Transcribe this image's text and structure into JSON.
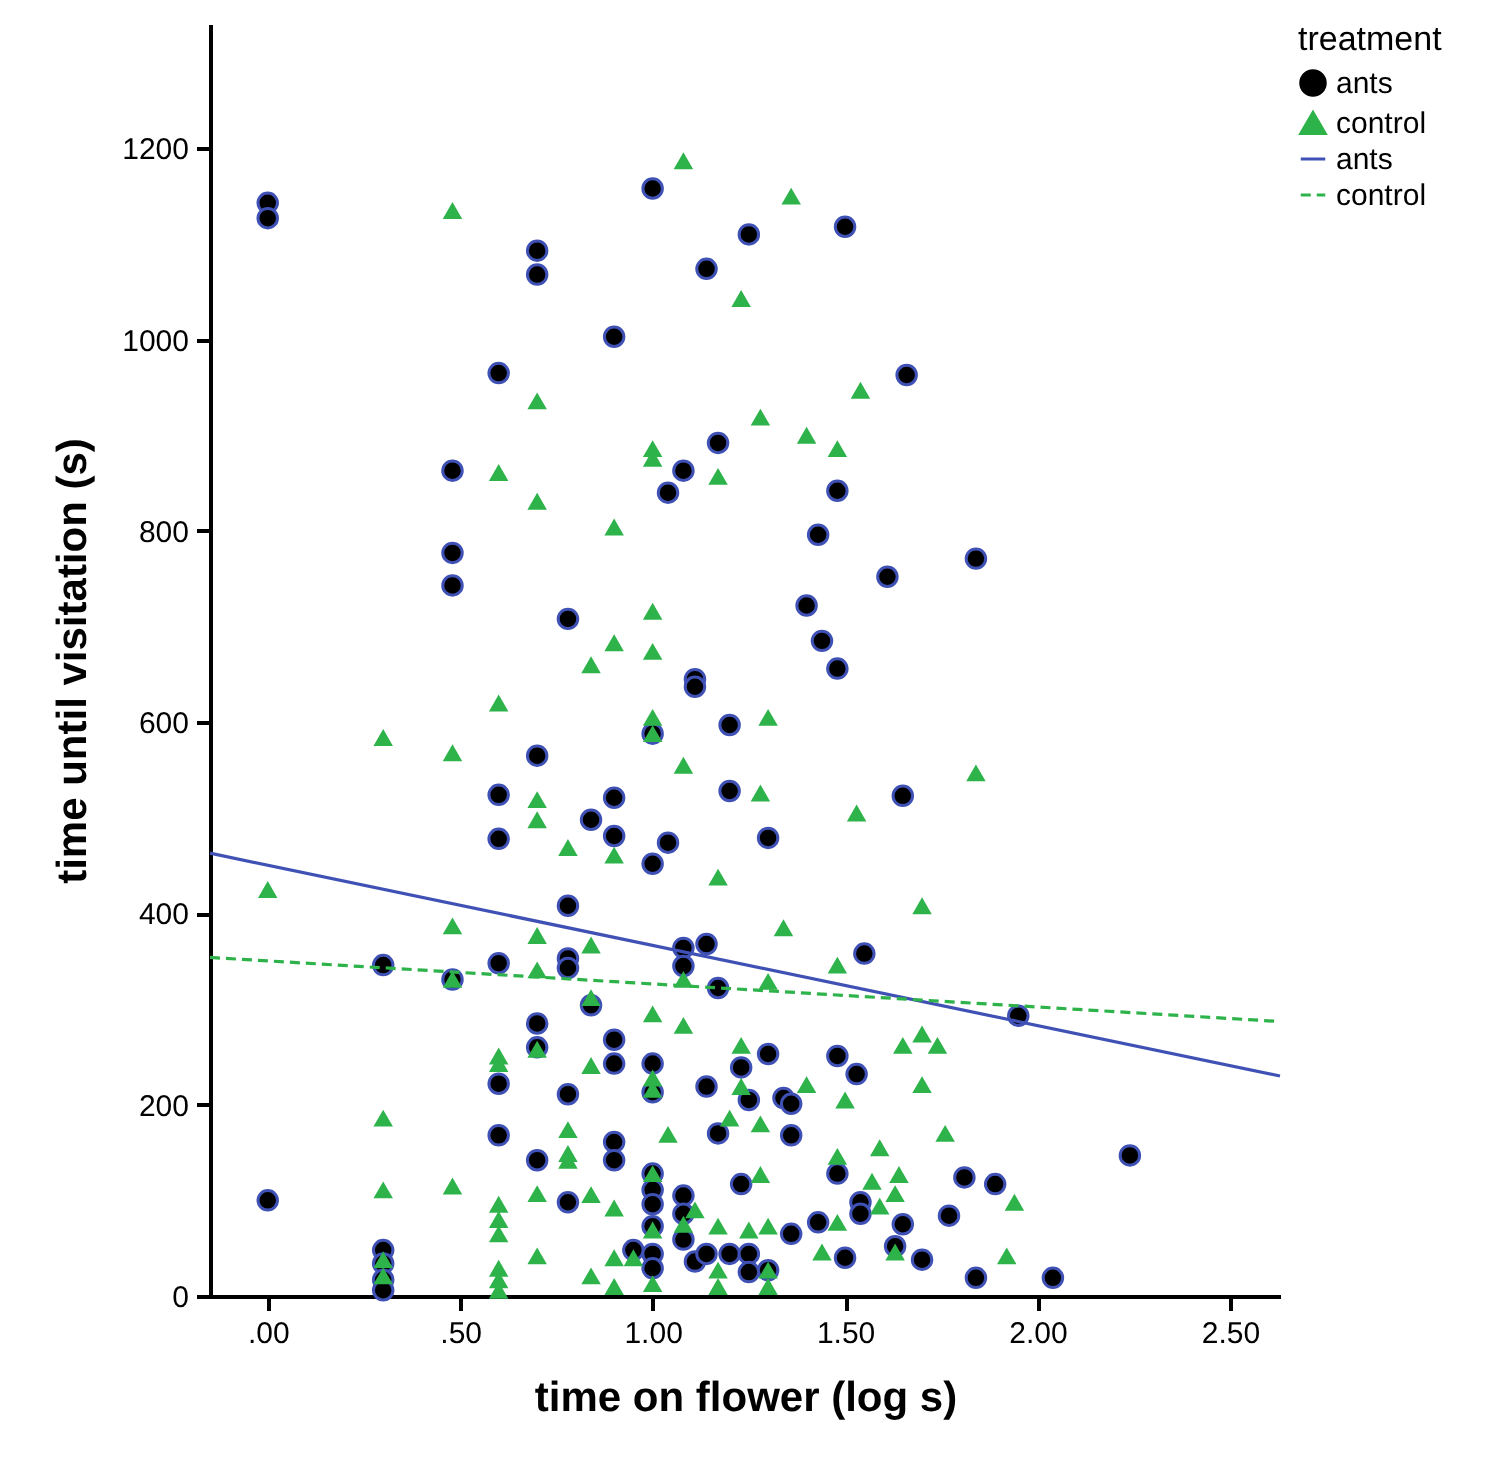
{
  "chart_data": {
    "type": "scatter",
    "xlabel": "time on flower (log s)",
    "ylabel": "time until visitation (s)",
    "legend_title": "treatment",
    "legend": "top right",
    "xlim": [
      -0.15,
      2.63
    ],
    "ylim": [
      0,
      1330
    ],
    "xticks": [
      {
        "value": 0,
        "label": ".00"
      },
      {
        "value": 0.5,
        "label": ".50"
      },
      {
        "value": 1,
        "label": "1.00"
      },
      {
        "value": 1.5,
        "label": "1.50"
      },
      {
        "value": 2,
        "label": "2.00"
      },
      {
        "value": 2.5,
        "label": "2.50"
      }
    ],
    "yticks": [
      0,
      200,
      400,
      600,
      800,
      1000,
      1200
    ],
    "series": [
      {
        "name": "ants",
        "marker": "circle",
        "color": "#000000",
        "x": [
          0,
          0,
          0,
          0.3,
          0.3,
          0.3,
          0.3,
          0.3,
          0.48,
          0.48,
          0.48,
          0.48,
          0.6,
          0.6,
          0.6,
          0.6,
          0.6,
          0.6,
          0.7,
          0.7,
          0.7,
          0.7,
          0.7,
          0.7,
          0.78,
          0.78,
          0.78,
          0.78,
          0.78,
          0.78,
          0.84,
          0.84,
          0.9,
          0.9,
          0.9,
          0.9,
          0.9,
          0.9,
          0.9,
          0.95,
          1,
          1,
          1,
          1,
          1,
          1,
          1,
          1,
          1,
          1,
          1,
          1.04,
          1.04,
          1.08,
          1.08,
          1.08,
          1.08,
          1.08,
          1.08,
          1.11,
          1.11,
          1.11,
          1.14,
          1.14,
          1.14,
          1.14,
          1.17,
          1.17,
          1.17,
          1.2,
          1.2,
          1.2,
          1.23,
          1.23,
          1.25,
          1.25,
          1.25,
          1.25,
          1.3,
          1.3,
          1.3,
          1.34,
          1.36,
          1.36,
          1.36,
          1.4,
          1.43,
          1.43,
          1.44,
          1.48,
          1.48,
          1.48,
          1.48,
          1.5,
          1.5,
          1.53,
          1.54,
          1.54,
          1.55,
          1.61,
          1.63,
          1.65,
          1.65,
          1.66,
          1.7,
          1.77,
          1.81,
          1.84,
          1.84,
          1.89,
          1.95,
          2.04,
          2.24
        ],
        "values": [
          1143,
          1127,
          100,
          346,
          48,
          34,
          17,
          6,
          863,
          777,
          743,
          331,
          965,
          524,
          478,
          348,
          222,
          168,
          1093,
          1068,
          565,
          285,
          260,
          142,
          708,
          408,
          353,
          343,
          211,
          98,
          498,
          304,
          1003,
          521,
          481,
          268,
          243,
          161,
          142,
          48,
          1158,
          588,
          452,
          243,
          213,
          128,
          111,
          96,
          73,
          44,
          29,
          840,
          474,
          863,
          364,
          345,
          105,
          86,
          59,
          645,
          637,
          36,
          1074,
          368,
          219,
          44,
          892,
          322,
          170,
          597,
          528,
          44,
          239,
          117,
          1110,
          205,
          44,
          25,
          479,
          253,
          27,
          207,
          201,
          168,
          65,
          722,
          796,
          77,
          685,
          842,
          656,
          251,
          128,
          1118,
          40,
          232,
          98,
          86,
          358,
          752,
          52,
          75,
          523,
          963,
          38,
          84,
          124,
          771,
          19,
          117,
          293,
          19,
          147
        ]
      },
      {
        "name": "control",
        "marker": "triangle",
        "color": "#2db34a",
        "x": [
          0,
          0.3,
          0.3,
          0.3,
          0.3,
          0.3,
          0.48,
          0.48,
          0.48,
          0.48,
          0.48,
          0.6,
          0.6,
          0.6,
          0.6,
          0.6,
          0.6,
          0.6,
          0.6,
          0.6,
          0.6,
          0.7,
          0.7,
          0.7,
          0.7,
          0.7,
          0.7,
          0.7,
          0.7,
          0.7,
          0.78,
          0.78,
          0.78,
          0.78,
          0.84,
          0.84,
          0.84,
          0.84,
          0.84,
          0.84,
          0.9,
          0.9,
          0.9,
          0.9,
          0.9,
          0.9,
          0.95,
          1,
          1,
          1,
          1,
          1,
          1,
          1,
          1,
          1,
          1,
          1,
          1,
          1.04,
          1.08,
          1.08,
          1.08,
          1.08,
          1.08,
          1.11,
          1.17,
          1.17,
          1.17,
          1.17,
          1.17,
          1.2,
          1.23,
          1.23,
          1.23,
          1.25,
          1.28,
          1.28,
          1.28,
          1.28,
          1.3,
          1.3,
          1.3,
          1.3,
          1.3,
          1.34,
          1.36,
          1.4,
          1.4,
          1.44,
          1.48,
          1.48,
          1.48,
          1.48,
          1.5,
          1.53,
          1.54,
          1.57,
          1.59,
          1.59,
          1.63,
          1.63,
          1.64,
          1.65,
          1.7,
          1.7,
          1.7,
          1.74,
          1.76,
          1.84,
          1.92,
          1.94
        ],
        "values": [
          425,
          584,
          186,
          111,
          38,
          21,
          1135,
          568,
          387,
          331,
          115,
          861,
          620,
          251,
          243,
          96,
          80,
          65,
          29,
          17,
          6,
          936,
          831,
          519,
          498,
          377,
          341,
          258,
          107,
          42,
          469,
          174,
          149,
          142,
          660,
          367,
          312,
          241,
          106,
          21,
          804,
          683,
          461,
          92,
          40,
          10,
          40,
          886,
          876,
          716,
          674,
          605,
          588,
          295,
          228,
          216,
          128,
          69,
          13,
          169,
          1187,
          555,
          331,
          283,
          75,
          90,
          857,
          438,
          73,
          27,
          10,
          186,
          1043,
          262,
          219,
          69,
          919,
          526,
          180,
          127,
          605,
          329,
          73,
          27,
          10,
          385,
          1150,
          900,
          221,
          46,
          886,
          346,
          146,
          77,
          205,
          505,
          947,
          120,
          155,
          94,
          107,
          46,
          127,
          262,
          408,
          274,
          221,
          262,
          170,
          547,
          42,
          98
        ]
      },
      {
        "name": "ants",
        "type": "line",
        "line_style": "solid",
        "color": "#3f51b5",
        "x": [
          -0.15,
          2.63
        ],
        "values": [
          463,
          230
        ]
      },
      {
        "name": "control",
        "type": "line",
        "line_style": "dashed",
        "color": "#2db34a",
        "x": [
          -0.15,
          2.63
        ],
        "values": [
          354,
          287
        ]
      }
    ]
  }
}
